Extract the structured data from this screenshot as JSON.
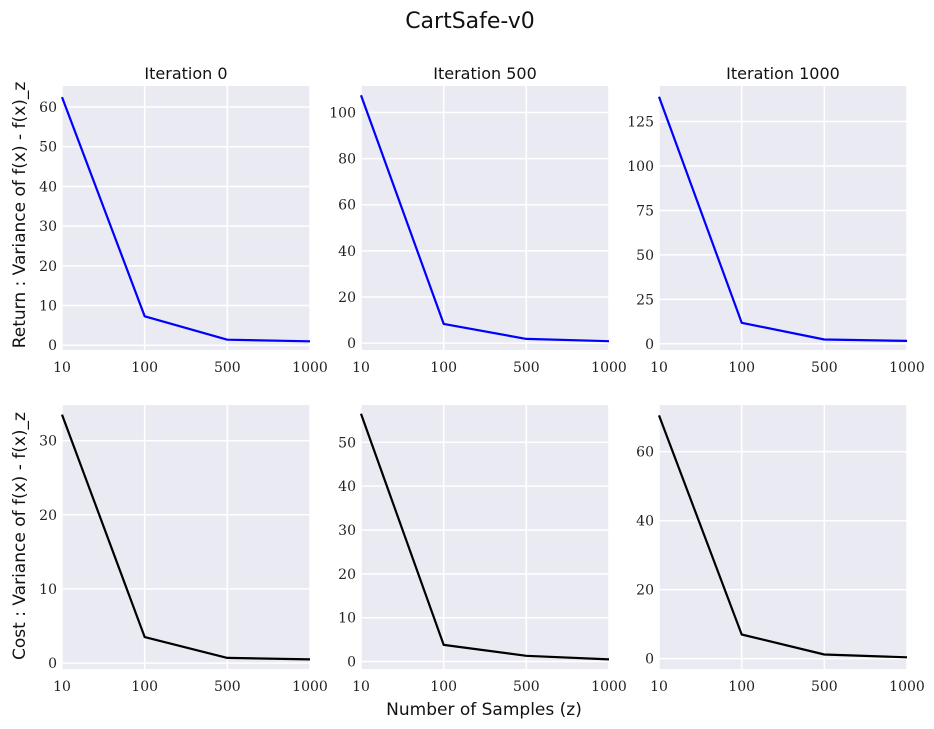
{
  "chart_data": {
    "type": "line",
    "suptitle": "CartSafe-v0",
    "xlabel": "Number of Samples (z)",
    "row_ylabels": [
      "Return : Variance of f(x) - f(x)_z",
      "Cost : Variance of f(x) - f(x)_z"
    ],
    "x_tick_labels": [
      "10",
      "100",
      "500",
      "1000"
    ],
    "colors": {
      "return": "#0000ff",
      "cost": "#000000",
      "panel_bg": "#eaeaf2",
      "grid": "#ffffff"
    },
    "panels": [
      {
        "title": "Iteration 0",
        "row": 0,
        "col": 0,
        "series": "return",
        "values": [
          62.5,
          7.3,
          1.4,
          1.0
        ],
        "ylim": [
          -1.2,
          65.3
        ],
        "yticks": [
          0,
          10,
          20,
          30,
          40,
          50,
          60
        ]
      },
      {
        "title": "Iteration 500",
        "row": 0,
        "col": 1,
        "series": "return",
        "values": [
          107.5,
          8.3,
          1.8,
          0.8
        ],
        "ylim": [
          -3.0,
          111.5
        ],
        "yticks": [
          0,
          20,
          40,
          60,
          80,
          100
        ]
      },
      {
        "title": "Iteration 1000",
        "row": 0,
        "col": 2,
        "series": "return",
        "values": [
          139.0,
          11.8,
          2.4,
          1.6
        ],
        "ylim": [
          -3.5,
          145.0
        ],
        "yticks": [
          0,
          25,
          50,
          75,
          100,
          125
        ]
      },
      {
        "title": "",
        "row": 1,
        "col": 0,
        "series": "cost",
        "values": [
          33.5,
          3.5,
          0.7,
          0.5
        ],
        "ylim": [
          -0.8,
          34.8
        ],
        "yticks": [
          0,
          10,
          20,
          30
        ]
      },
      {
        "title": "",
        "row": 1,
        "col": 1,
        "series": "cost",
        "values": [
          56.5,
          3.8,
          1.3,
          0.5
        ],
        "ylim": [
          -1.7,
          58.5
        ],
        "yticks": [
          0,
          10,
          20,
          30,
          40,
          50
        ]
      },
      {
        "title": "",
        "row": 1,
        "col": 2,
        "series": "cost",
        "values": [
          70.5,
          7.0,
          1.2,
          0.4
        ],
        "ylim": [
          -3.0,
          73.5
        ],
        "yticks": [
          0,
          20,
          40,
          60
        ]
      }
    ]
  }
}
